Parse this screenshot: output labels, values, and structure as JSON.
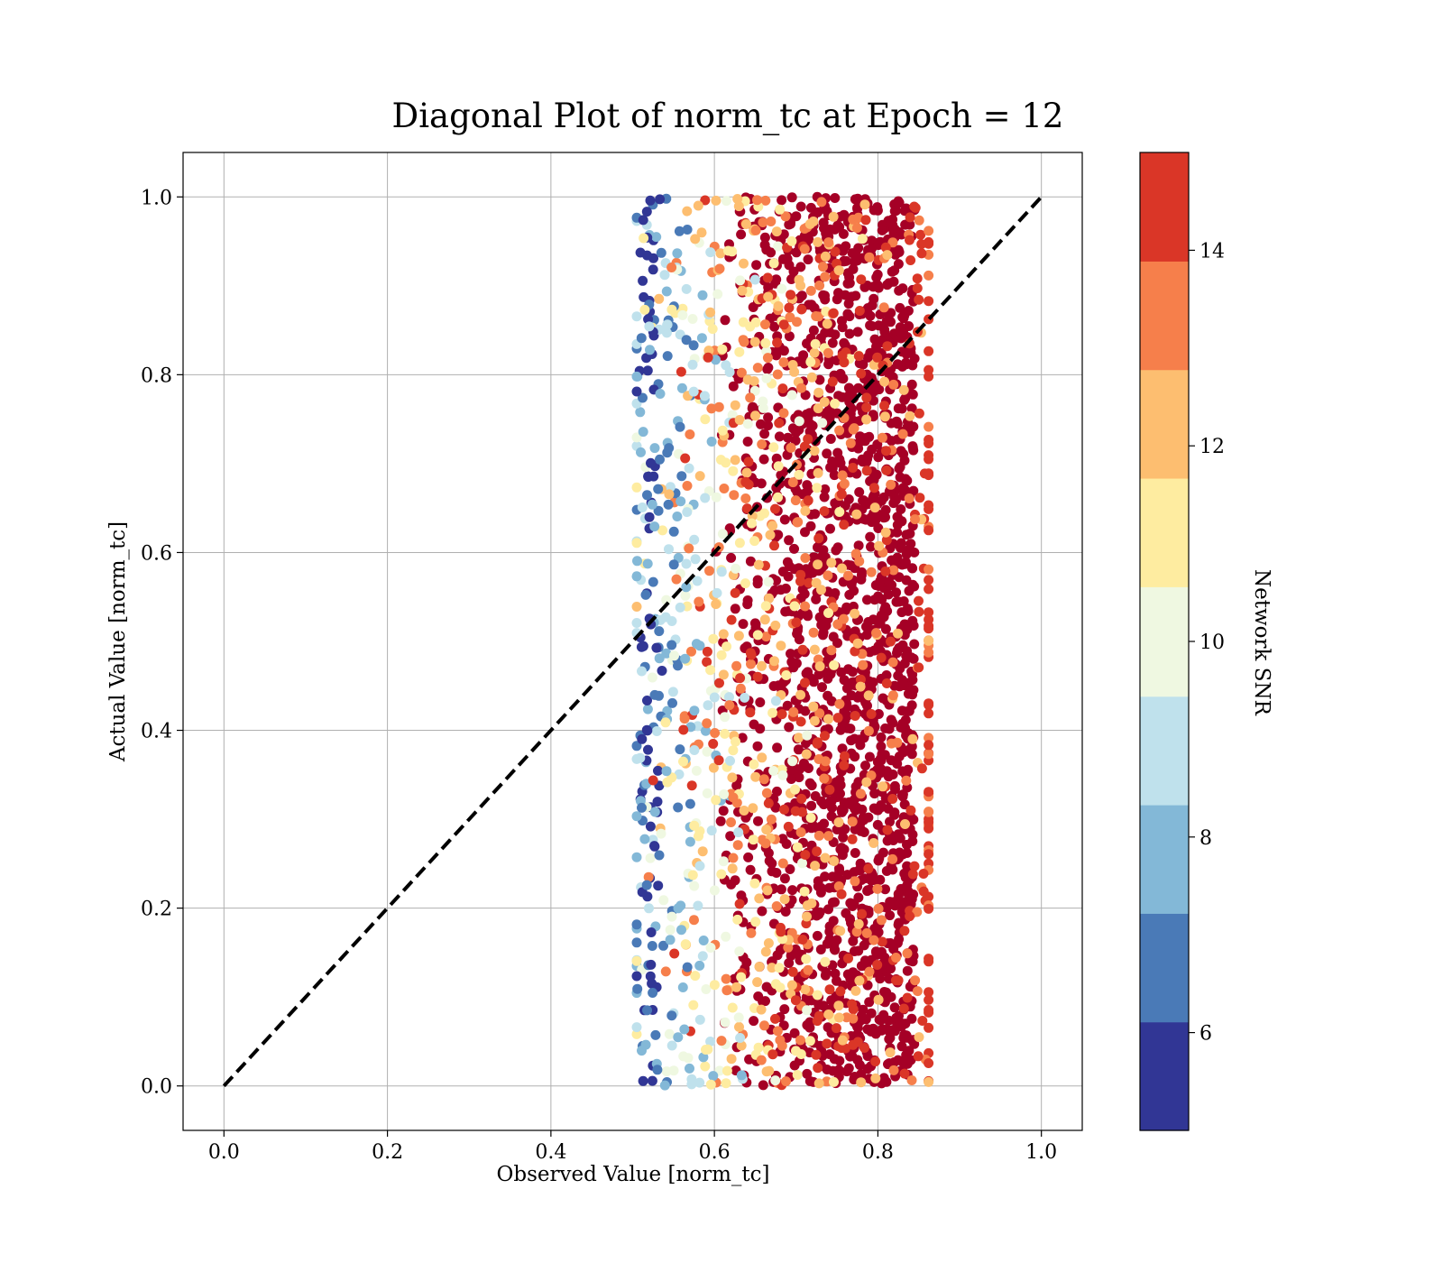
{
  "chart_data": {
    "type": "scatter",
    "title": "Diagonal Plot of norm_tc at Epoch = 12",
    "xlabel": "Observed Value [norm_tc]",
    "ylabel": "Actual Value [norm_tc]",
    "xlim": [
      -0.05,
      1.05
    ],
    "ylim": [
      -0.05,
      1.05
    ],
    "xticks": [
      "0.0",
      "0.2",
      "0.4",
      "0.6",
      "0.8",
      "1.0"
    ],
    "yticks": [
      "0.0",
      "0.2",
      "0.4",
      "0.6",
      "0.8",
      "1.0"
    ],
    "grid": true,
    "reference_line": {
      "from": [
        0,
        0
      ],
      "to": [
        1,
        1
      ],
      "style": "dashed",
      "color": "#000000"
    },
    "points_summary": {
      "x_range": [
        0.5,
        0.87
      ],
      "y_range": [
        0.0,
        1.0
      ],
      "x_by_color_level": [
        0.52,
        0.535,
        0.545,
        0.56,
        0.6,
        0.64,
        0.68,
        0.72,
        0.78
      ]
    },
    "colorbar": {
      "label": "Network SNR",
      "range": [
        5,
        15
      ],
      "ticks": [
        "6",
        "8",
        "10",
        "12",
        "14"
      ],
      "tick_values": [
        6,
        8,
        10,
        12,
        14
      ],
      "boundaries": [
        5,
        6.11,
        7.22,
        8.33,
        9.44,
        10.56,
        11.67,
        12.78,
        13.89,
        15
      ],
      "colors": [
        "#313695",
        "#4a7ab7",
        "#83b8d7",
        "#bfe1ec",
        "#eff8e1",
        "#feeca0",
        "#fdbe70",
        "#f67f4b",
        "#da3627",
        "#a50026"
      ]
    }
  }
}
